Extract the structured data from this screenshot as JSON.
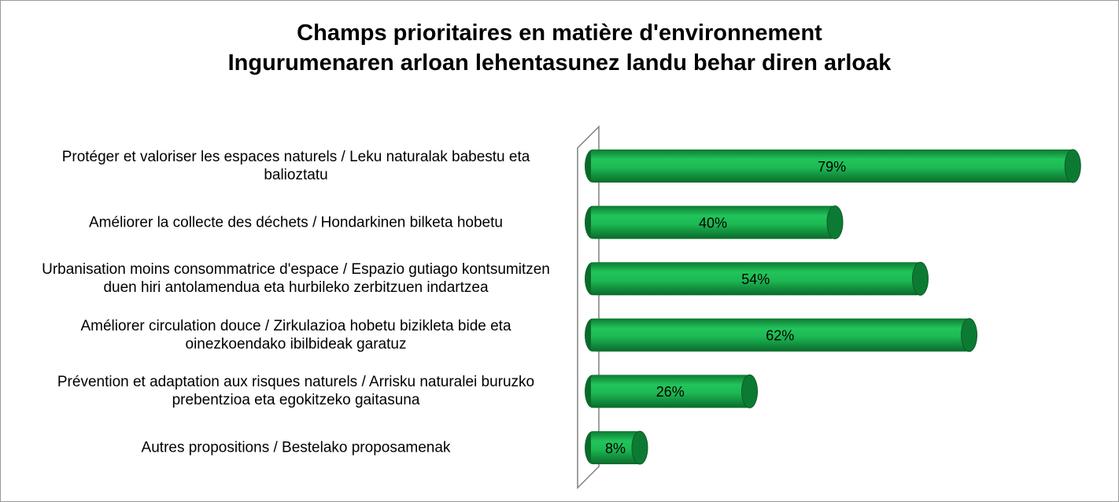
{
  "chart_data": {
    "type": "bar",
    "orientation": "horizontal",
    "title": [
      "Champs prioritaires en matière d'environnement",
      "Ingurumenaren arloan lehentasunez landu behar diren arloak"
    ],
    "categories": [
      "Protéger et valoriser les espaces naturels / Leku naturalak babestu eta balioztatu",
      "Améliorer la collecte des déchets / Hondarkinen bilketa hobetu",
      "Urbanisation moins consommatrice d'espace / Espazio gutiago kontsumitzen duen hiri antolamendua eta hurbileko zerbitzuen indartzea",
      "Améliorer circulation douce / Zirkulazioa hobetu bizikleta bide  eta oinezkoendako ibilbideak garatuz",
      "Prévention et adaptation aux risques naturels / Arrisku naturalei buruzko prebentzioa eta egokitzeko gaitasuna",
      "Autres propositions / Bestelako proposamenak"
    ],
    "values": [
      79,
      40,
      54,
      62,
      26,
      8
    ],
    "value_labels": [
      "79%",
      "40%",
      "54%",
      "62%",
      "26%",
      "8%"
    ],
    "color": "#1db954"
  }
}
